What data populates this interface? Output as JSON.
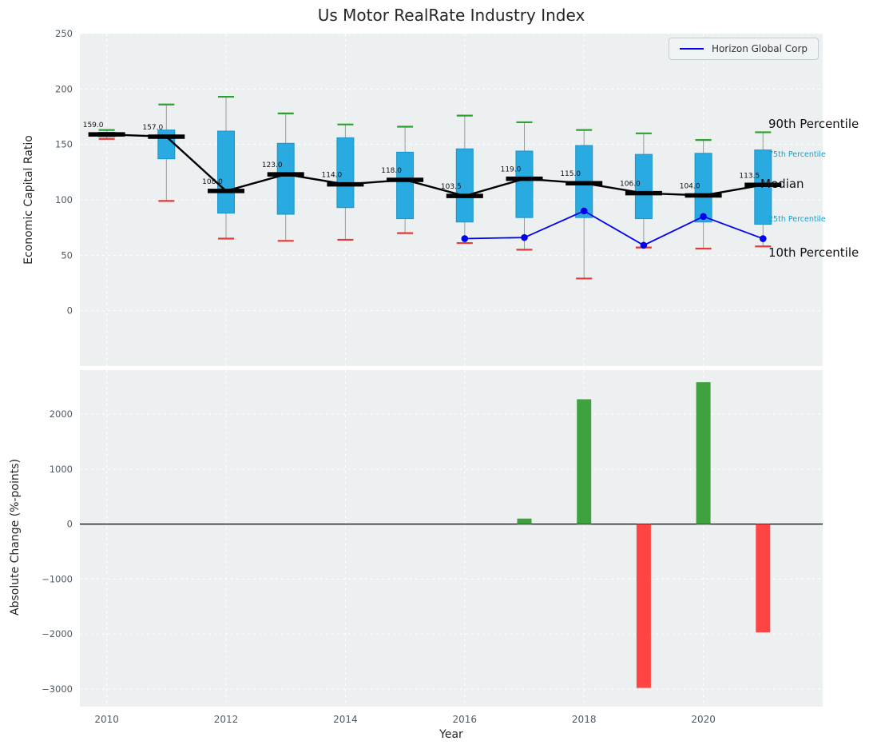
{
  "figure": {
    "title": "Us Motor RealRate Industry Index",
    "xlabel": "Year",
    "legend": {
      "label": "Horizon Global Corp"
    },
    "top": {
      "ylabel": "Economic Capital Ratio"
    },
    "bottom": {
      "ylabel": "Absolute Change (%-points)"
    },
    "annotations": {
      "p90": "90th Percentile",
      "p75": "75th Percentile",
      "median": "Median",
      "p25": "25th Percentile",
      "p10": "10th Percentile"
    }
  },
  "colors": {
    "plot_bg": "#ecf0f1",
    "grid": "#ffffff",
    "tick_label": "#4e5a65",
    "box_fill": "#29abe2",
    "box_edge": "#1b94c8",
    "whisker": "#9a9a9a",
    "cap_high": "#2da02d",
    "cap_low": "#e53935",
    "median": "#000000",
    "series_line": "#0000ee",
    "bar_positive": "#3fa23f",
    "bar_negative": "#ff4444",
    "annotation_small": "#1a9fcd"
  },
  "chart_data": [
    {
      "type": "boxplot",
      "title": "Us Motor RealRate Industry Index",
      "ylabel": "Economic Capital Ratio",
      "ylim": [
        -50,
        250
      ],
      "yticks": [
        0,
        50,
        100,
        150,
        200,
        250
      ],
      "xlim": [
        2009.55,
        2022.0
      ],
      "xticks": [
        2010,
        2012,
        2014,
        2016,
        2018,
        2020
      ],
      "grid": true,
      "legend_position": "upper right",
      "annotations": [
        "90th Percentile",
        "75th Percentile",
        "Median",
        "25th Percentile",
        "10th Percentile"
      ],
      "boxes": [
        {
          "year": 2010,
          "low": 155,
          "q1": 157,
          "median": 159.0,
          "q3": 161,
          "high": 163,
          "label": "159.0"
        },
        {
          "year": 2011,
          "low": 99,
          "q1": 137,
          "median": 157.0,
          "q3": 163,
          "high": 186,
          "label": "157.0"
        },
        {
          "year": 2012,
          "low": 65,
          "q1": 88,
          "median": 108.0,
          "q3": 162,
          "high": 193,
          "label": "108.0"
        },
        {
          "year": 2013,
          "low": 63,
          "q1": 87,
          "median": 123.0,
          "q3": 151,
          "high": 178,
          "label": "123.0"
        },
        {
          "year": 2014,
          "low": 64,
          "q1": 93,
          "median": 114.0,
          "q3": 156,
          "high": 168,
          "label": "114.0"
        },
        {
          "year": 2015,
          "low": 70,
          "q1": 83,
          "median": 118.0,
          "q3": 143,
          "high": 166,
          "label": "118.0"
        },
        {
          "year": 2016,
          "low": 61,
          "q1": 80,
          "median": 103.5,
          "q3": 146,
          "high": 176,
          "label": "103.5"
        },
        {
          "year": 2017,
          "low": 55,
          "q1": 84,
          "median": 119.0,
          "q3": 144,
          "high": 170,
          "label": "119.0"
        },
        {
          "year": 2018,
          "low": 29,
          "q1": 84,
          "median": 115.0,
          "q3": 149,
          "high": 163,
          "label": "115.0"
        },
        {
          "year": 2019,
          "low": 57,
          "q1": 83,
          "median": 106.0,
          "q3": 141,
          "high": 160,
          "label": "106.0"
        },
        {
          "year": 2020,
          "low": 56,
          "q1": 80,
          "median": 104.0,
          "q3": 142,
          "high": 154,
          "label": "104.0"
        },
        {
          "year": 2021,
          "low": 58,
          "q1": 78,
          "median": 113.5,
          "q3": 145,
          "high": 161,
          "label": "113.5"
        }
      ],
      "series": [
        {
          "name": "Horizon Global Corp",
          "x": [
            2016,
            2017,
            2018,
            2019,
            2020,
            2021
          ],
          "values": [
            65,
            66,
            90,
            59,
            85,
            65
          ]
        }
      ]
    },
    {
      "type": "bar",
      "ylabel": "Absolute Change (%-points)",
      "xlabel": "Year",
      "ylim": [
        -3320,
        2800
      ],
      "yticks": [
        -3000,
        -2000,
        -1000,
        0,
        1000,
        2000
      ],
      "x": [
        2017,
        2018,
        2019,
        2020,
        2021
      ],
      "values": [
        100,
        2270,
        -2980,
        2580,
        -1970
      ]
    }
  ]
}
